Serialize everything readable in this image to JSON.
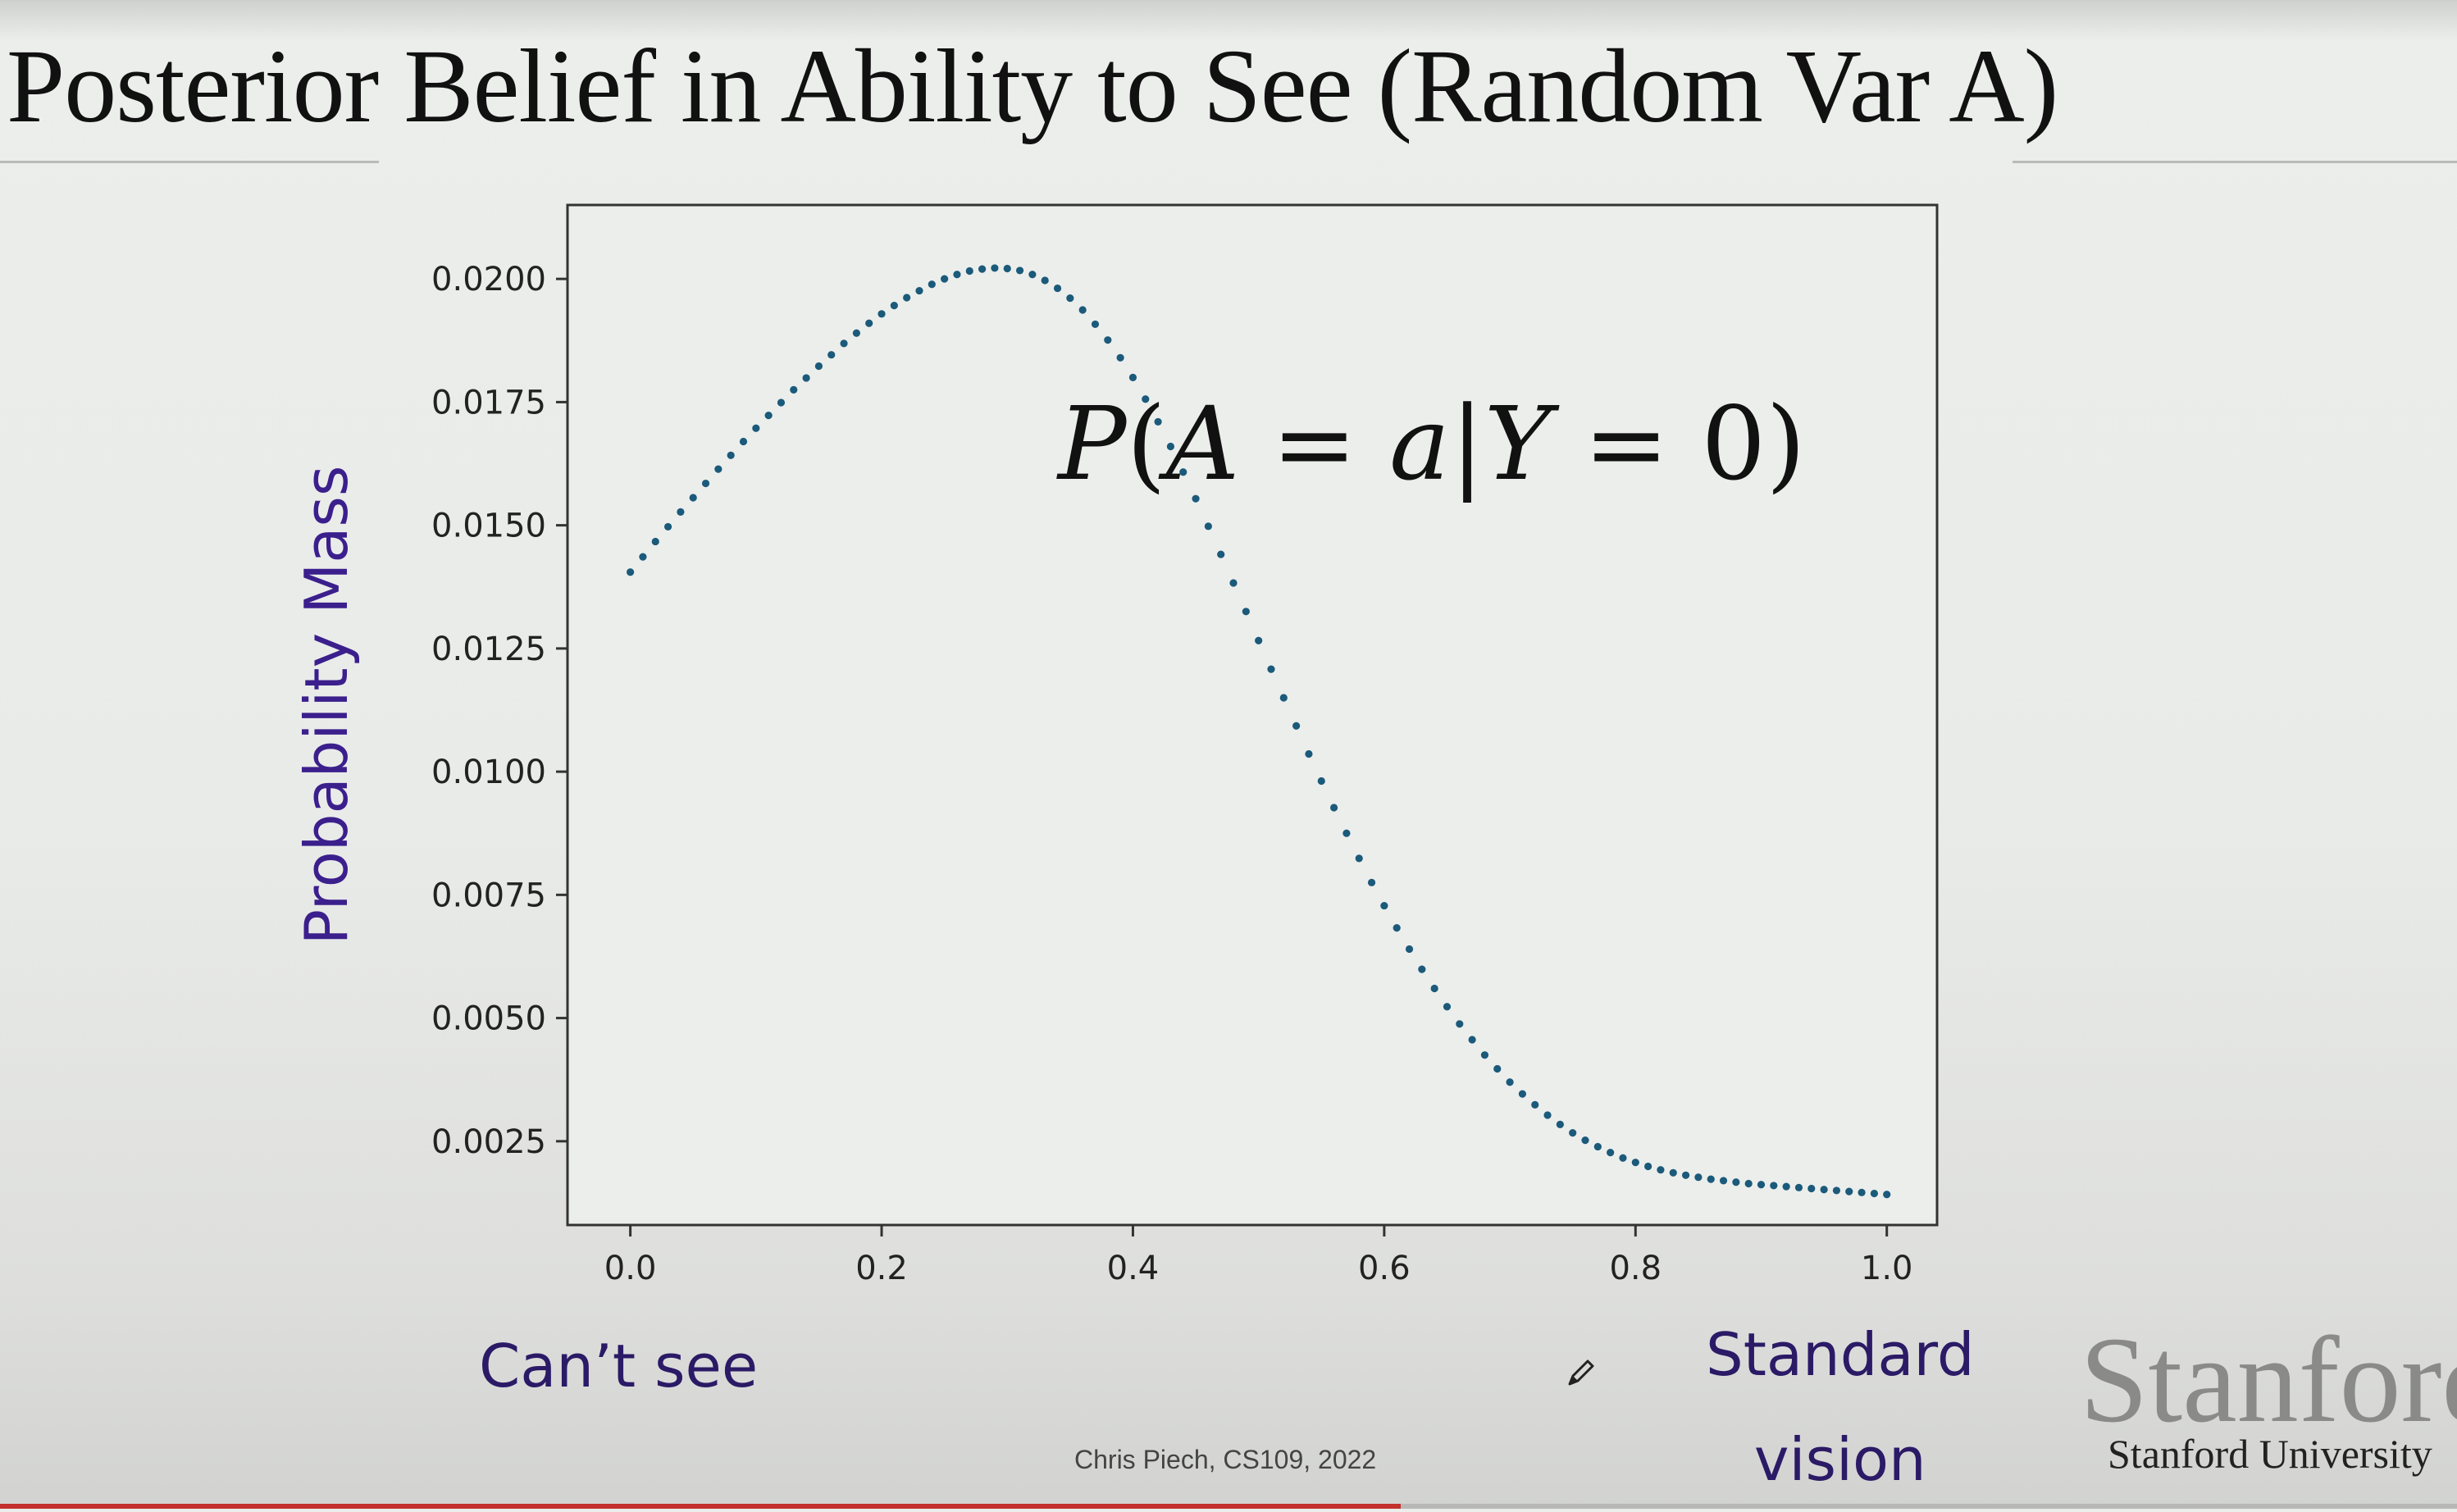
{
  "slide": {
    "title": "Posterior Belief in Ability to See (Random Var A)",
    "credit": "Chris Piech, CS109, 2022",
    "logo_wordmark": "Stanford",
    "logo_subtitle": "Stanford University"
  },
  "annotations": {
    "left_label": "Can’t see",
    "right_label_line1": "Standard",
    "right_label_line2": "vision"
  },
  "video": {
    "progress_fraction": 0.57
  },
  "chart_data": {
    "type": "scatter",
    "title": "",
    "ylabel": "Probability Mass",
    "xlabel": "",
    "annotation": "P(A = a|Y = 0)",
    "xlim": [
      -0.05,
      1.04
    ],
    "ylim": [
      0.0008,
      0.0215
    ],
    "xticks": [
      "0.0",
      "0.2",
      "0.4",
      "0.6",
      "0.8",
      "1.0"
    ],
    "yticks": [
      "0.0025",
      "0.0050",
      "0.0075",
      "0.0100",
      "0.0125",
      "0.0150",
      "0.0175",
      "0.0200"
    ],
    "marker_color": "#1b5a7a",
    "grid": false,
    "x": [
      0.0,
      0.01,
      0.02,
      0.03,
      0.04,
      0.05,
      0.06,
      0.07,
      0.08,
      0.09,
      0.1,
      0.11,
      0.12,
      0.13,
      0.14,
      0.15,
      0.16,
      0.17,
      0.18,
      0.19,
      0.2,
      0.21,
      0.22,
      0.23,
      0.24,
      0.25,
      0.26,
      0.27,
      0.28,
      0.29,
      0.3,
      0.31,
      0.32,
      0.33,
      0.34,
      0.35,
      0.36,
      0.37,
      0.38,
      0.39,
      0.4,
      0.41,
      0.42,
      0.43,
      0.44,
      0.45,
      0.46,
      0.47,
      0.48,
      0.49,
      0.5,
      0.51,
      0.52,
      0.53,
      0.54,
      0.55,
      0.56,
      0.57,
      0.58,
      0.59,
      0.6,
      0.61,
      0.62,
      0.63,
      0.64,
      0.65,
      0.66,
      0.67,
      0.68,
      0.69,
      0.7,
      0.71,
      0.72,
      0.73,
      0.74,
      0.75,
      0.76,
      0.77,
      0.78,
      0.79,
      0.8,
      0.81,
      0.82,
      0.83,
      0.84,
      0.85,
      0.86,
      0.87,
      0.88,
      0.89,
      0.9,
      0.91,
      0.92,
      0.93,
      0.94,
      0.95,
      0.96,
      0.97,
      0.98,
      0.99,
      1.0
    ],
    "y": [
      0.01405,
      0.01436,
      0.01467,
      0.01497,
      0.01527,
      0.01556,
      0.01585,
      0.01614,
      0.01642,
      0.0167,
      0.01697,
      0.01723,
      0.01749,
      0.01775,
      0.01799,
      0.01823,
      0.01846,
      0.01869,
      0.0189,
      0.0191,
      0.01929,
      0.01946,
      0.01962,
      0.01976,
      0.01989,
      0.02,
      0.02009,
      0.02016,
      0.0202,
      0.02022,
      0.02021,
      0.02017,
      0.02009,
      0.01997,
      0.01981,
      0.01961,
      0.01937,
      0.01908,
      0.01876,
      0.0184,
      0.018,
      0.01756,
      0.0171,
      0.0166,
      0.01608,
      0.01554,
      0.01498,
      0.01441,
      0.01383,
      0.01325,
      0.01266,
      0.01208,
      0.0115,
      0.01093,
      0.01036,
      0.00981,
      0.00927,
      0.00875,
      0.00824,
      0.00775,
      0.00728,
      0.00683,
      0.0064,
      0.00599,
      0.0056,
      0.00523,
      0.00488,
      0.00456,
      0.00425,
      0.00397,
      0.0037,
      0.00346,
      0.00324,
      0.00303,
      0.00284,
      0.00267,
      0.00252,
      0.00239,
      0.00227,
      0.00216,
      0.00207,
      0.00199,
      0.00192,
      0.00186,
      0.00181,
      0.00177,
      0.00173,
      0.0017,
      0.00167,
      0.00164,
      0.00162,
      0.0016,
      0.00158,
      0.00156,
      0.00154,
      0.00152,
      0.0015,
      0.00148,
      0.00146,
      0.00144,
      0.00142
    ]
  }
}
